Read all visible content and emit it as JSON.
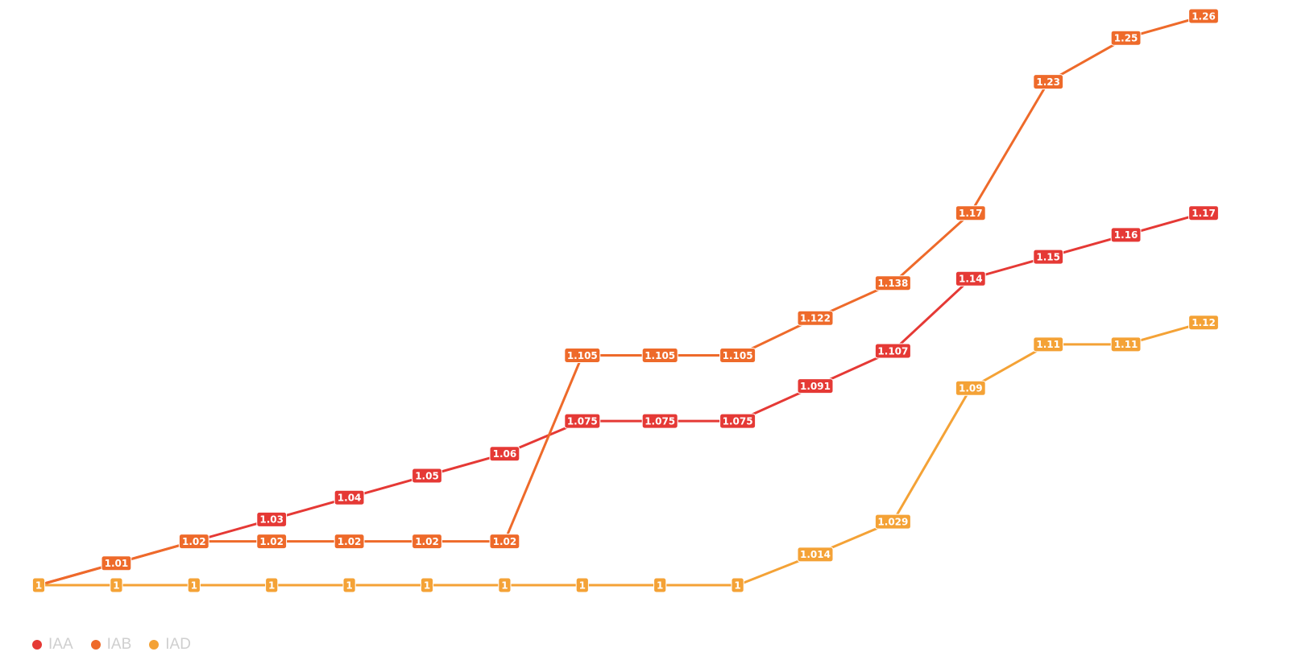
{
  "chart_data": {
    "type": "line",
    "title": "",
    "xlabel": "",
    "ylabel": "",
    "grid": false,
    "legend_position": "bottom-left",
    "x": [
      1,
      2,
      3,
      4,
      5,
      6,
      7,
      8,
      9,
      10,
      11,
      12,
      13,
      14,
      15,
      16
    ],
    "ylim": [
      1.0,
      1.26
    ],
    "series": [
      {
        "name": "IAA",
        "color": "#e53935",
        "values": [
          1,
          1.01,
          1.02,
          1.03,
          1.04,
          1.05,
          1.06,
          1.075,
          1.075,
          1.075,
          1.091,
          1.107,
          1.14,
          1.15,
          1.16,
          1.17
        ],
        "labels": [
          "1",
          "1.01",
          "1.02",
          "1.03",
          "1.04",
          "1.05",
          "1.06",
          "1.075",
          "1.075",
          "1.075",
          "1.091",
          "1.107",
          "1.14",
          "1.15",
          "1.16",
          "1.17"
        ],
        "show_label": [
          false,
          false,
          false,
          true,
          true,
          true,
          true,
          true,
          true,
          true,
          true,
          true,
          true,
          true,
          true,
          true
        ]
      },
      {
        "name": "IAB",
        "color": "#ee6a2a",
        "values": [
          1,
          1.01,
          1.02,
          1.02,
          1.02,
          1.02,
          1.02,
          1.105,
          1.105,
          1.105,
          1.122,
          1.138,
          1.17,
          1.23,
          1.25,
          1.26
        ],
        "labels": [
          "1",
          "1.01",
          "1.02",
          "1.02",
          "1.02",
          "1.02",
          "1.02",
          "1.105",
          "1.105",
          "1.105",
          "1.122",
          "1.138",
          "1.17",
          "1.23",
          "1.25",
          "1.26"
        ],
        "show_label": [
          false,
          true,
          true,
          true,
          true,
          true,
          true,
          true,
          true,
          true,
          true,
          true,
          true,
          true,
          true,
          true
        ]
      },
      {
        "name": "IAD",
        "color": "#f4a236",
        "values": [
          1,
          1,
          1,
          1,
          1,
          1,
          1,
          1,
          1,
          1,
          1.014,
          1.029,
          1.09,
          1.11,
          1.11,
          1.12
        ],
        "labels": [
          "1",
          "1",
          "1",
          "1",
          "1",
          "1",
          "1",
          "1",
          "1",
          "1",
          "1.014",
          "1.029",
          "1.09",
          "1.11",
          "1.11",
          "1.12"
        ],
        "show_label": [
          true,
          true,
          true,
          true,
          true,
          true,
          true,
          true,
          true,
          true,
          true,
          true,
          true,
          true,
          true,
          true
        ]
      }
    ]
  }
}
